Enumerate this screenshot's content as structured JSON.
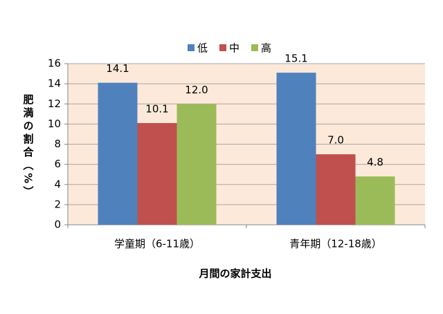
{
  "chart_data": {
    "type": "bar",
    "categories": [
      "学童期（6-11歳）",
      "青年期（12-18歳）"
    ],
    "series": [
      {
        "name": "低",
        "color": "#4f81bd",
        "values": [
          14.1,
          15.1
        ],
        "value_labels": [
          "14.1",
          "15.1"
        ]
      },
      {
        "name": "中",
        "color": "#c0504d",
        "values": [
          10.1,
          7
        ],
        "value_labels": [
          "10.1",
          "7.0"
        ]
      },
      {
        "name": "高",
        "color": "#9bbb59",
        "values": [
          12,
          4.8
        ],
        "value_labels": [
          "12.0",
          "4.8"
        ]
      }
    ],
    "x_label": "月間の家計支出",
    "y_label": "肥満の割合（%）",
    "ylim": [
      0,
      16
    ],
    "yticks": [
      0,
      2,
      4,
      6,
      8,
      10,
      12,
      14,
      16
    ],
    "grid": true,
    "plot_background": "#fde9d9",
    "legend": "top"
  }
}
